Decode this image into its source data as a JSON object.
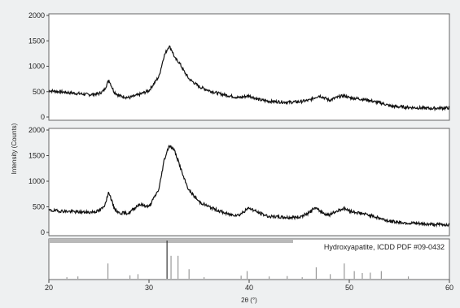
{
  "chart_data": {
    "type": "line",
    "xlabel": "2θ (°)",
    "ylabel": "Intensity (Counts)",
    "xlim": [
      20,
      60
    ],
    "x_ticks": [
      "20",
      "30",
      "40",
      "50",
      "60"
    ],
    "grid": false,
    "panels": [
      {
        "name": "top",
        "ylim": [
          0,
          2000
        ],
        "y_ticks": [
          "0",
          "500",
          "1000",
          "1500",
          "2000"
        ],
        "series": [
          {
            "x": [
              20,
              21,
              22,
              23,
              24,
              25,
              25.5,
              26,
              26.5,
              27,
              28,
              29,
              30,
              31,
              31.5,
              32,
              32.3,
              32.6,
              33,
              33.5,
              34,
              35,
              36,
              37,
              38,
              39,
              40,
              41,
              42,
              43,
              44,
              45,
              46,
              46.5,
              47,
              47.5,
              48,
              49,
              49.5,
              50,
              51,
              52,
              52.5,
              53,
              53.5,
              54,
              55,
              56,
              57,
              58,
              59,
              60
            ],
            "y": [
              520,
              500,
              480,
              460,
              440,
              460,
              520,
              730,
              500,
              420,
              380,
              440,
              520,
              800,
              1200,
              1400,
              1310,
              1150,
              1080,
              900,
              750,
              600,
              520,
              460,
              420,
              380,
              420,
              340,
              310,
              300,
              290,
              300,
              330,
              380,
              420,
              380,
              330,
              400,
              420,
              380,
              360,
              330,
              300,
              280,
              260,
              220,
              200,
              190,
              180,
              170,
              175,
              180
            ]
          }
        ]
      },
      {
        "name": "bottom",
        "ylim": [
          0,
          2000
        ],
        "y_ticks": [
          "0",
          "500",
          "1000",
          "1500",
          "2000"
        ],
        "series": [
          {
            "x": [
              20,
              21,
              22,
              23,
              24,
              25,
              25.5,
              26,
              26.5,
              27,
              28,
              29,
              30,
              31,
              31.5,
              32,
              32.5,
              33,
              33.5,
              34,
              35,
              36,
              37,
              38,
              39,
              40,
              41,
              42,
              43,
              44,
              45,
              46,
              46.5,
              47,
              47.5,
              48,
              49,
              49.5,
              50,
              51,
              52,
              52.5,
              53,
              53.5,
              54,
              55,
              56,
              57,
              58,
              59,
              60
            ],
            "y": [
              430,
              420,
              410,
              400,
              390,
              420,
              500,
              790,
              480,
              380,
              380,
              550,
              500,
              850,
              1400,
              1700,
              1620,
              1350,
              1050,
              820,
              600,
              500,
              420,
              350,
              340,
              480,
              380,
              310,
              300,
              290,
              300,
              380,
              480,
              430,
              370,
              340,
              440,
              470,
              420,
              380,
              340,
              310,
              280,
              250,
              220,
              200,
              180,
              170,
              160,
              155,
              150
            ]
          }
        ]
      },
      {
        "name": "reference",
        "label": "Hydroxyapatite, ICDD PDF #09-0432",
        "sticks": [
          [
            21.8,
            4
          ],
          [
            22.9,
            6
          ],
          [
            25.9,
            40
          ],
          [
            28.1,
            9
          ],
          [
            28.9,
            12
          ],
          [
            31.8,
            100
          ],
          [
            32.2,
            60
          ],
          [
            32.9,
            60
          ],
          [
            34.0,
            25
          ],
          [
            35.5,
            4
          ],
          [
            39.2,
            8
          ],
          [
            39.8,
            20
          ],
          [
            42.0,
            6
          ],
          [
            43.8,
            7
          ],
          [
            45.3,
            4
          ],
          [
            46.7,
            30
          ],
          [
            48.1,
            12
          ],
          [
            49.5,
            40
          ],
          [
            50.5,
            20
          ],
          [
            51.3,
            15
          ],
          [
            52.1,
            16
          ],
          [
            53.2,
            20
          ],
          [
            55.9,
            6
          ]
        ]
      }
    ]
  }
}
